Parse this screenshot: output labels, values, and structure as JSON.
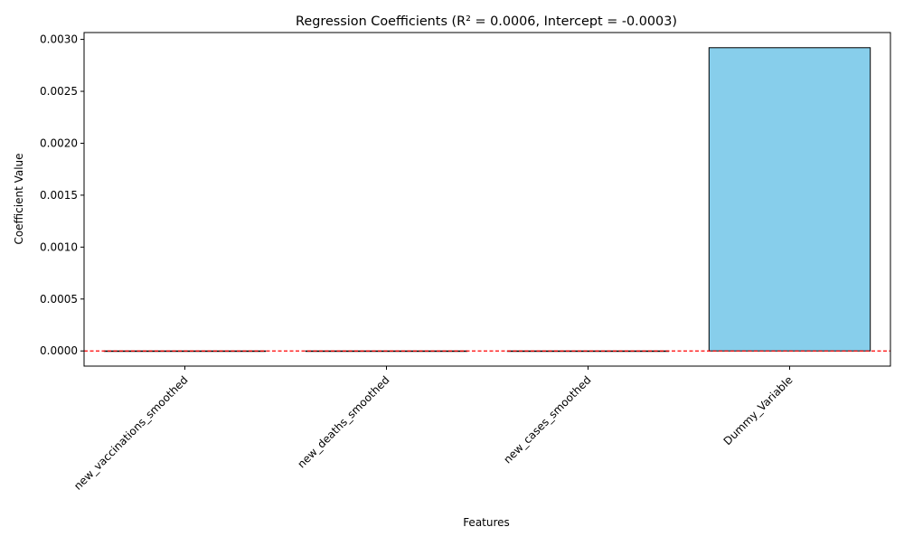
{
  "chart_data": {
    "type": "bar",
    "title": "Regression Coefficients (R² = 0.0006, Intercept = -0.0003)",
    "xlabel": "Features",
    "ylabel": "Coefficient Value",
    "categories": [
      "new_vaccinations_smoothed",
      "new_deaths_smoothed",
      "new_cases_smoothed",
      "Dummy_Variable"
    ],
    "values": [
      0.0,
      0.0,
      0.0,
      0.00292
    ],
    "ylim": [
      -0.000146,
      0.003066
    ],
    "yticks": [
      0.0,
      0.0005,
      0.001,
      0.0015,
      0.002,
      0.0025,
      0.003
    ],
    "ytick_labels": [
      "0.0000",
      "0.0005",
      "0.0010",
      "0.0015",
      "0.0020",
      "0.0025",
      "0.0030"
    ],
    "reference_line": {
      "y": 0,
      "style": "dashed"
    },
    "grid": false,
    "legend": "none",
    "colors": {
      "bar_fill": "#87ceeb",
      "bar_edge": "#000000",
      "reference_line": "#ff0000",
      "axis": "#000000"
    }
  }
}
